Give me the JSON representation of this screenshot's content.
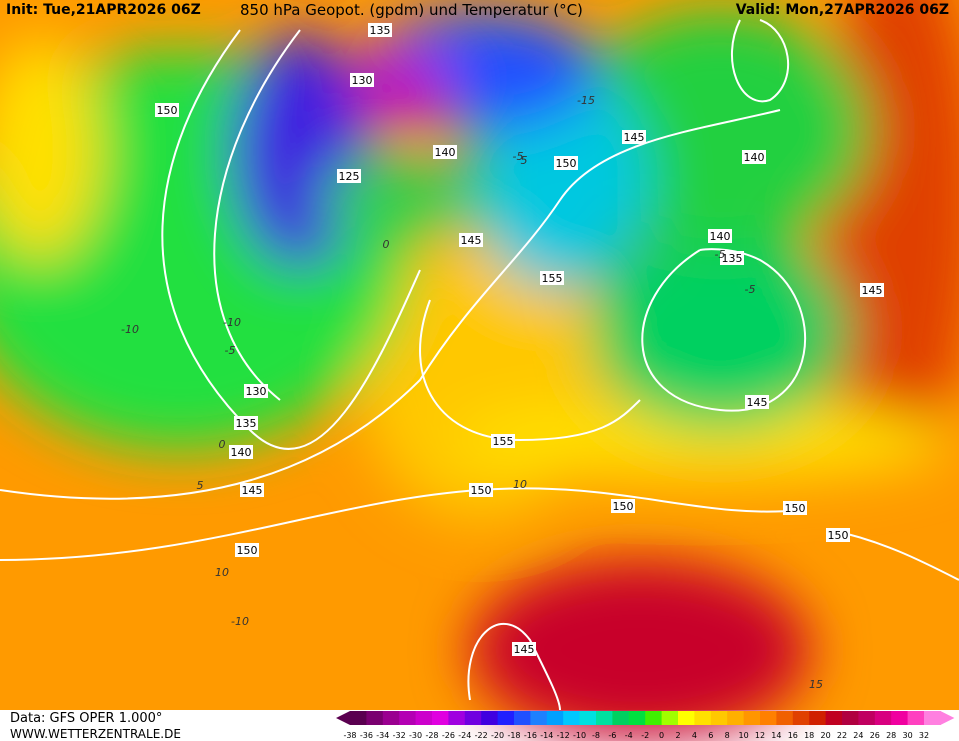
{
  "header": {
    "init": "Init: Tue,21APR2026 06Z",
    "title": "850 hPa Geopot. (gpdm) und Temperatur (°C)",
    "valid": "Valid: Mon,27APR2026 06Z"
  },
  "footer": {
    "data_source": "Data: GFS OPER 1.000°",
    "website": "WWW.WETTERZENTRALE.DE"
  },
  "colorbar": {
    "labels": [
      -38,
      -36,
      -34,
      -32,
      -30,
      -28,
      -26,
      -24,
      -22,
      -20,
      -18,
      -16,
      -14,
      -12,
      -10,
      -8,
      -6,
      -4,
      -2,
      0,
      2,
      4,
      6,
      8,
      10,
      12,
      14,
      16,
      18,
      20,
      22,
      24,
      26,
      28,
      30,
      32
    ],
    "colors": [
      "#5a0050",
      "#7a0070",
      "#9a0090",
      "#b400b4",
      "#cc00cc",
      "#e000e0",
      "#a000e0",
      "#7000e0",
      "#4000e0",
      "#2020ff",
      "#2050ff",
      "#1e80ff",
      "#00a0ff",
      "#00c8ff",
      "#00e0e0",
      "#00e0a0",
      "#00d060",
      "#00e040",
      "#40f000",
      "#a0ff00",
      "#ffff00",
      "#ffe000",
      "#ffc800",
      "#ffb000",
      "#ff9600",
      "#ff8000",
      "#f06000",
      "#e04000",
      "#d02000",
      "#c00020",
      "#b00040",
      "#c00060",
      "#d80080",
      "#f000a0",
      "#ff40c0",
      "#ff80e0"
    ]
  },
  "map": {
    "geopotential_labels": [
      135,
      130,
      150,
      125,
      140,
      140,
      150,
      145,
      145,
      140,
      135,
      155,
      145,
      145,
      130,
      135,
      140,
      145,
      155,
      150,
      150,
      150,
      150,
      145,
      150
    ],
    "temperature_labels": [
      -10,
      -5,
      0,
      -5,
      5,
      0,
      -10,
      -15,
      -5,
      -5,
      5,
      10,
      10,
      15,
      -10
    ]
  }
}
